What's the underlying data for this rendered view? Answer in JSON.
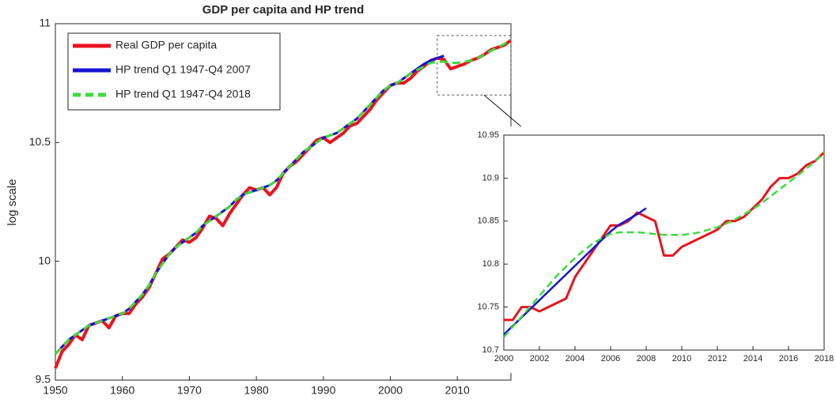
{
  "chart_data": [
    {
      "type": "line",
      "title": "GDP per capita and HP trend",
      "ylabel": "log scale",
      "x": [
        1950,
        1951,
        1952,
        1953,
        1954,
        1955,
        1956,
        1957,
        1958,
        1959,
        1960,
        1961,
        1962,
        1963,
        1964,
        1965,
        1966,
        1967,
        1968,
        1969,
        1970,
        1971,
        1972,
        1973,
        1974,
        1975,
        1976,
        1977,
        1978,
        1979,
        1980,
        1981,
        1982,
        1983,
        1984,
        1985,
        1986,
        1987,
        1988,
        1989,
        1990,
        1991,
        1992,
        1993,
        1994,
        1995,
        1996,
        1997,
        1998,
        1999,
        2000,
        2001,
        2002,
        2003,
        2004,
        2005,
        2006,
        2007,
        2008,
        2009,
        2010,
        2011,
        2012,
        2013,
        2014,
        2015,
        2016,
        2017,
        2018
      ],
      "series": [
        {
          "name": "Real GDP per capita",
          "color": "#e8141e",
          "values": [
            9.55,
            9.62,
            9.65,
            9.69,
            9.67,
            9.73,
            9.74,
            9.75,
            9.72,
            9.77,
            9.78,
            9.78,
            9.82,
            9.85,
            9.89,
            9.95,
            10.01,
            10.03,
            10.06,
            10.09,
            10.08,
            10.1,
            10.14,
            10.19,
            10.18,
            10.15,
            10.2,
            10.24,
            10.28,
            10.31,
            10.3,
            10.31,
            10.28,
            10.31,
            10.37,
            10.4,
            10.42,
            10.45,
            10.48,
            10.51,
            10.52,
            10.5,
            10.52,
            10.54,
            10.57,
            10.58,
            10.61,
            10.64,
            10.68,
            10.71,
            10.74,
            10.75,
            10.75,
            10.77,
            10.8,
            10.82,
            10.845,
            10.855,
            10.85,
            10.81,
            10.82,
            10.83,
            10.845,
            10.855,
            10.87,
            10.89,
            10.9,
            10.91,
            10.93
          ]
        },
        {
          "name": "HP trend Q1 1947-Q4 2007",
          "color": "#1414d2",
          "values": [
            9.61,
            9.64,
            9.67,
            9.69,
            9.71,
            9.73,
            9.74,
            9.75,
            9.76,
            9.77,
            9.78,
            9.8,
            9.83,
            9.86,
            9.9,
            9.95,
            9.99,
            10.03,
            10.06,
            10.08,
            10.1,
            10.12,
            10.15,
            10.17,
            10.19,
            10.21,
            10.23,
            10.26,
            10.28,
            10.29,
            10.3,
            10.31,
            10.32,
            10.34,
            10.37,
            10.4,
            10.43,
            10.46,
            10.48,
            10.5,
            10.52,
            10.53,
            10.54,
            10.56,
            10.58,
            10.6,
            10.63,
            10.66,
            10.69,
            10.72,
            10.74,
            10.75,
            10.77,
            10.79,
            10.81,
            10.83,
            10.845,
            10.855,
            10.865,
            null,
            null,
            null,
            null,
            null,
            null,
            null,
            null,
            null,
            null
          ]
        },
        {
          "name": "HP trend Q1 1947-Q4 2018",
          "color": "#3cdc3c",
          "dashed": true,
          "values": [
            9.61,
            9.64,
            9.67,
            9.69,
            9.71,
            9.73,
            9.74,
            9.75,
            9.76,
            9.77,
            9.78,
            9.8,
            9.83,
            9.86,
            9.9,
            9.95,
            9.99,
            10.03,
            10.06,
            10.08,
            10.1,
            10.12,
            10.15,
            10.17,
            10.19,
            10.21,
            10.23,
            10.26,
            10.28,
            10.29,
            10.3,
            10.31,
            10.32,
            10.34,
            10.37,
            10.4,
            10.43,
            10.46,
            10.48,
            10.5,
            10.52,
            10.53,
            10.54,
            10.56,
            10.58,
            10.6,
            10.63,
            10.66,
            10.69,
            10.72,
            10.74,
            10.75,
            10.77,
            10.79,
            10.805,
            10.82,
            10.835,
            10.84,
            10.84,
            10.835,
            10.835,
            10.84,
            10.845,
            10.855,
            10.87,
            10.885,
            10.9,
            10.915,
            10.93
          ]
        }
      ],
      "xlim": [
        1950,
        2018
      ],
      "xticks": [
        1950,
        1960,
        1970,
        1980,
        1990,
        2000,
        2010
      ],
      "ylim": [
        9.5,
        11
      ],
      "yticks": [
        9.5,
        10,
        10.5,
        11
      ],
      "legend": "upper left",
      "grid": false
    },
    {
      "type": "line",
      "x": [
        2000,
        2000.5,
        2001,
        2001.5,
        2002,
        2002.5,
        2003,
        2003.5,
        2004,
        2004.5,
        2005,
        2005.5,
        2006,
        2006.5,
        2007,
        2007.5,
        2008,
        2008.5,
        2009,
        2009.5,
        2010,
        2010.5,
        2011,
        2011.5,
        2012,
        2012.5,
        2013,
        2013.5,
        2014,
        2014.5,
        2015,
        2015.5,
        2016,
        2016.5,
        2017,
        2017.5,
        2018
      ],
      "series": [
        {
          "color": "#e8141e",
          "values": [
            10.735,
            10.735,
            10.75,
            10.75,
            10.745,
            10.75,
            10.755,
            10.76,
            10.785,
            10.8,
            10.815,
            10.83,
            10.845,
            10.845,
            10.85,
            10.86,
            10.855,
            10.85,
            10.81,
            10.81,
            10.82,
            10.825,
            10.83,
            10.835,
            10.84,
            10.85,
            10.85,
            10.855,
            10.865,
            10.875,
            10.89,
            10.9,
            10.9,
            10.905,
            10.915,
            10.92,
            10.93
          ]
        },
        {
          "color": "#1414d2",
          "values": [
            10.718,
            10.728,
            10.738,
            10.748,
            10.758,
            10.768,
            10.778,
            10.788,
            10.798,
            10.808,
            10.818,
            10.828,
            10.838,
            10.846,
            10.852,
            10.858,
            10.865,
            null,
            null,
            null,
            null,
            null,
            null,
            null,
            null,
            null,
            null,
            null,
            null,
            null,
            null,
            null,
            null,
            null,
            null,
            null,
            null
          ]
        },
        {
          "color": "#3cdc3c",
          "dashed": true,
          "values": [
            10.715,
            10.727,
            10.739,
            10.751,
            10.763,
            10.775,
            10.787,
            10.797,
            10.807,
            10.816,
            10.824,
            10.83,
            10.835,
            10.837,
            10.837,
            10.837,
            10.836,
            10.835,
            10.834,
            10.834,
            10.834,
            10.835,
            10.837,
            10.84,
            10.843,
            10.847,
            10.852,
            10.858,
            10.864,
            10.871,
            10.879,
            10.887,
            10.895,
            10.903,
            10.911,
            10.92,
            10.93
          ]
        }
      ],
      "xlim": [
        2000,
        2018
      ],
      "xticks": [
        2000,
        2002,
        2004,
        2006,
        2008,
        2010,
        2012,
        2014,
        2016,
        2018
      ],
      "ylim": [
        10.7,
        10.95
      ],
      "yticks": [
        10.7,
        10.75,
        10.8,
        10.85,
        10.9,
        10.95
      ],
      "grid": false
    }
  ]
}
